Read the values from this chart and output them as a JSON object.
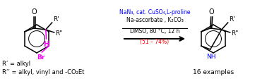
{
  "background_color": "#ffffff",
  "arrow_color": "#000000",
  "reagent_line1_color": "#0000ff",
  "reagent_line1": "NaN₃, cat. CuSO₄,L-proline",
  "reagent_line2_color": "#000000",
  "reagent_line2": "Na-ascorbate , K₂CO₃",
  "condition_line": "DMSO, 80 °C, 12 h",
  "yield_line": "(51 – 74%)",
  "yield_color": "#ff0000",
  "examples_text": "16 examples",
  "rp_text": "R’ = alkyl",
  "rpp_text": "R’’ = alkyl, vinyl and -CO₂Et",
  "nh_color": "#0000ff",
  "br_color": "#ff00ff",
  "h_color": "#ff00ff",
  "bond_color": "#000000",
  "figsize": [
    3.78,
    1.13
  ],
  "dpi": 100
}
